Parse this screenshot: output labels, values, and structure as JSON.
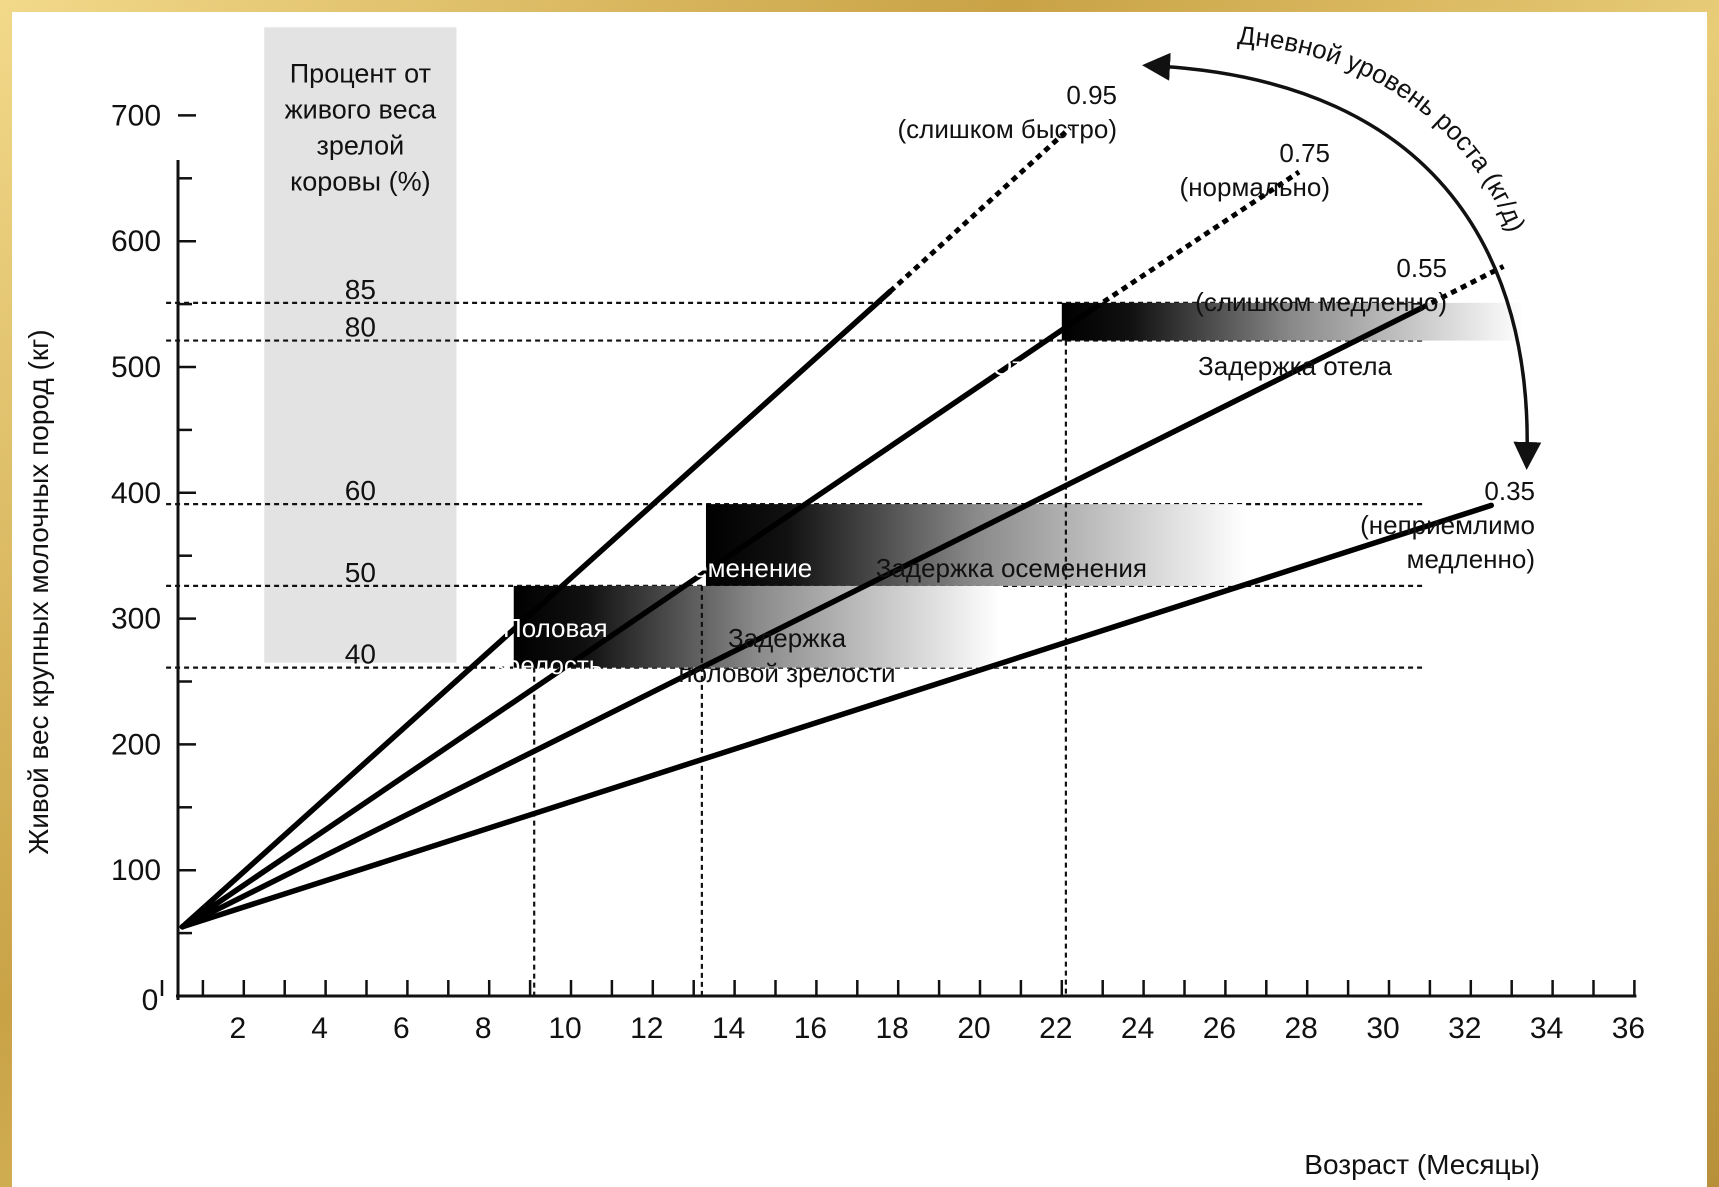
{
  "colors": {
    "frame": "#c9a34a",
    "background": "#ffffff",
    "band": "#e3e3e3",
    "ink": "#111111"
  },
  "chart_data": {
    "type": "line",
    "xlabel": "Возраст (Месяцы)",
    "ylabel": "Живой вес крупных молочных пород (кг)",
    "xlim": [
      0,
      36
    ],
    "ylim": [
      0,
      700
    ],
    "x_ticks": [
      "2",
      "4",
      "6",
      "8",
      "10",
      "12",
      "14",
      "16",
      "18",
      "20",
      "22",
      "24",
      "26",
      "28",
      "30",
      "32",
      "34",
      "36"
    ],
    "y_ticks": [
      "0",
      "100",
      "200",
      "300",
      "400",
      "500",
      "600",
      "700"
    ],
    "y_origin_label": "0",
    "grid": false,
    "growth_arrow_label": "Дневной уровень роста (кг/д)",
    "series": [
      {
        "rate": "0.95",
        "desc": "(слишком быстро)",
        "start": [
          0.5,
          55
        ],
        "solid_end": [
          17.8,
          560
        ],
        "dashed_end": [
          22.2,
          690
        ]
      },
      {
        "rate": "0.75",
        "desc": "(нормально)",
        "start": [
          0.5,
          55
        ],
        "solid_end": [
          22.8,
          547
        ],
        "dashed_end": [
          27.8,
          655
        ]
      },
      {
        "rate": "0.55",
        "desc": "(слишком медленно)",
        "start": [
          0.5,
          55
        ],
        "solid_end": [
          30.8,
          547
        ],
        "dashed_end": [
          32.8,
          580
        ]
      },
      {
        "rate": "0.35",
        "desc": "(неприемлимо медленно)",
        "desc_lines": [
          "(неприемлимо",
          "медленно)"
        ],
        "start": [
          0.5,
          55
        ],
        "solid_end": [
          32.5,
          390
        ],
        "dashed_end": null
      }
    ],
    "percent_band": {
      "title_lines": [
        "Процент от",
        "живого веса",
        "зрелой",
        "коровы (%)"
      ],
      "x_range": [
        2.5,
        7.2
      ],
      "y_range": [
        265,
        770
      ],
      "levels": [
        {
          "label": "85",
          "y": 551
        },
        {
          "label": "80",
          "y": 521
        },
        {
          "label": "60",
          "y": 391
        },
        {
          "label": "50",
          "y": 326
        },
        {
          "label": "40",
          "y": 261
        }
      ]
    },
    "milestones": [
      {
        "label_lines": [
          "Половая",
          "зрелость"
        ],
        "delay_lines": [
          "Задержка",
          "половой зрелости"
        ],
        "x_start": 8.6,
        "x_end": 20.5,
        "y_range": [
          261,
          326
        ],
        "vline_x": 9.1
      },
      {
        "label_lines": [
          "Осеменение"
        ],
        "delay_lines": [
          "Задержка осеменения"
        ],
        "x_start": 13.3,
        "x_end": 26.5,
        "y_range": [
          326,
          391
        ],
        "vline_x": 13.2
      },
      {
        "label_lines": [
          "Отел"
        ],
        "delay_lines": [
          "Задержка отела"
        ],
        "x_start": 22.0,
        "x_end": 33.3,
        "y_range": [
          521,
          551
        ],
        "vline_x": 22.1
      }
    ]
  }
}
